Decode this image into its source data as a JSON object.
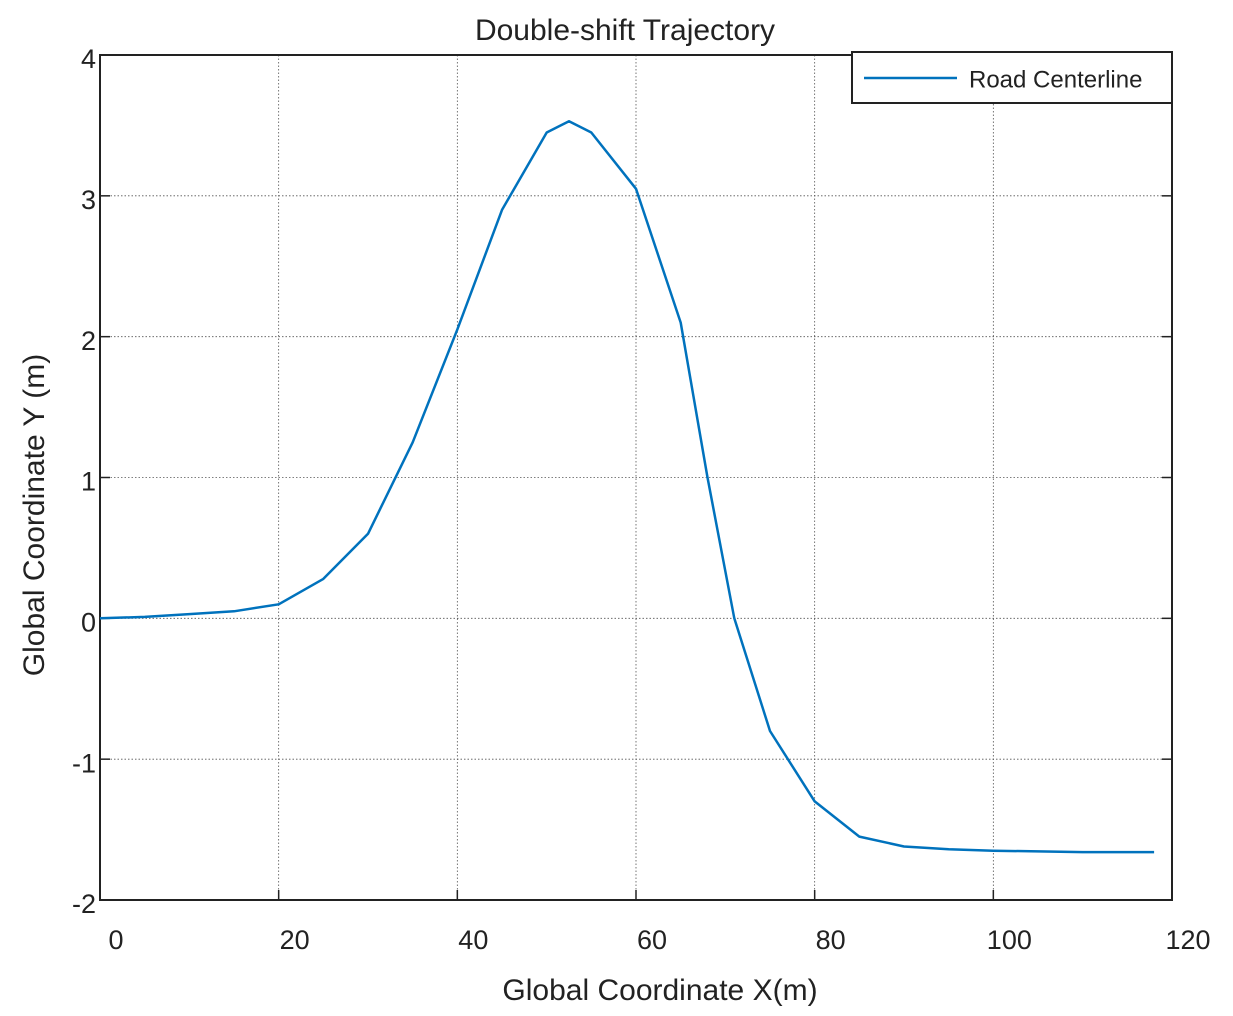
{
  "chart_data": {
    "type": "line",
    "title": "Double-shift Trajectory",
    "x_label": "Global Coordinate X(m)",
    "y_label": "Global Coordinate Y (m)",
    "series": [
      {
        "name": "Road Centerline",
        "color": "#0072bd",
        "x": [
          0,
          5,
          10,
          15,
          20,
          25,
          30,
          35,
          40,
          45,
          50,
          52.5,
          55,
          60,
          65,
          68,
          71,
          75,
          80,
          85,
          90,
          95,
          100,
          110,
          118
        ],
        "values": [
          0,
          0.01,
          0.03,
          0.05,
          0.1,
          0.28,
          0.6,
          1.25,
          2.05,
          2.9,
          3.45,
          3.53,
          3.45,
          3.05,
          2.1,
          1.0,
          0,
          -0.8,
          -1.3,
          -1.55,
          -1.62,
          -1.64,
          -1.65,
          -1.66,
          -1.66
        ]
      }
    ],
    "xlim": [
      0,
      120
    ],
    "xticks": [
      0,
      20,
      40,
      60,
      80,
      100,
      120
    ],
    "ylim": [
      -2,
      4
    ],
    "yticks": [
      -2,
      -1,
      0,
      1,
      2,
      3,
      4
    ],
    "grid": true,
    "legend": "upper right"
  }
}
